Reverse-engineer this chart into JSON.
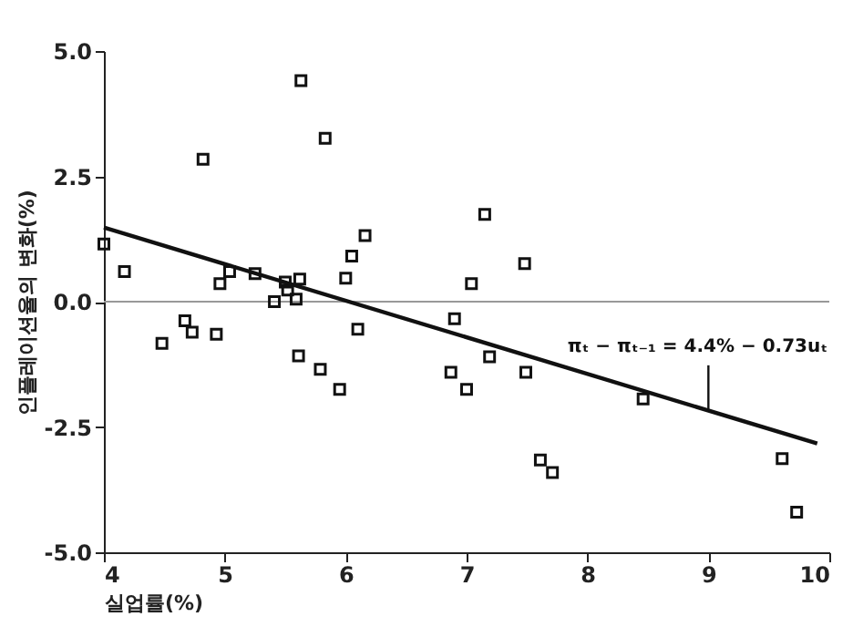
{
  "chart_data": {
    "type": "scatter",
    "xlabel": "실업률(%)",
    "ylabel": "인플레이션율의 변화(%)",
    "xlim": [
      4,
      10
    ],
    "xticks": [
      4,
      5,
      6,
      7,
      8,
      9,
      10
    ],
    "ylim": [
      -5,
      5
    ],
    "yticks": [
      {
        "value": -5,
        "label": "-5.0"
      },
      {
        "value": -2.5,
        "label": "-2.5"
      },
      {
        "value": 0,
        "label": "0.0"
      },
      {
        "value": 2.5,
        "label": "2.5"
      },
      {
        "value": 5,
        "label": "5.0"
      }
    ],
    "grid": false,
    "series": [
      {
        "type": "scatter",
        "marker": "square",
        "color": "#111111",
        "x": [
          4.0,
          4.17,
          4.48,
          4.67,
          4.73,
          4.93,
          4.82,
          4.96,
          5.04,
          5.25,
          5.41,
          5.5,
          5.52,
          5.62,
          5.59,
          5.63,
          5.61,
          5.83,
          5.79,
          5.95,
          6.0,
          6.05,
          6.16,
          6.1,
          7.15,
          7.48,
          7.04,
          6.9,
          7.19,
          6.87,
          7.0,
          7.49,
          8.46,
          7.61,
          7.71,
          9.61,
          9.73
        ],
        "values": [
          1.15,
          0.6,
          -0.83,
          -0.38,
          -0.61,
          -0.65,
          2.84,
          0.36,
          0.6,
          0.56,
          0.0,
          0.39,
          0.23,
          0.45,
          0.05,
          4.41,
          -1.08,
          3.26,
          -1.35,
          -1.75,
          0.47,
          0.91,
          1.32,
          -0.55,
          1.74,
          0.76,
          0.36,
          -0.34,
          -1.1,
          -1.41,
          -1.75,
          -1.41,
          -1.94,
          -3.16,
          -3.41,
          -3.13,
          -4.2
        ]
      },
      {
        "type": "line",
        "marker": "none",
        "color": "#111111",
        "line_style": "solid",
        "x": [
          4.0,
          9.9
        ],
        "values": [
          1.48,
          -2.83
        ]
      }
    ],
    "ref_lines": [
      {
        "axis": "y",
        "value": 0,
        "color": "#999999",
        "line_style": "solid"
      }
    ],
    "annotations": [
      {
        "text": "πₜ − πₜ₋₁ = 4.4% − 0.73uₜ",
        "x": 9.0,
        "y": -2.17
      }
    ]
  }
}
